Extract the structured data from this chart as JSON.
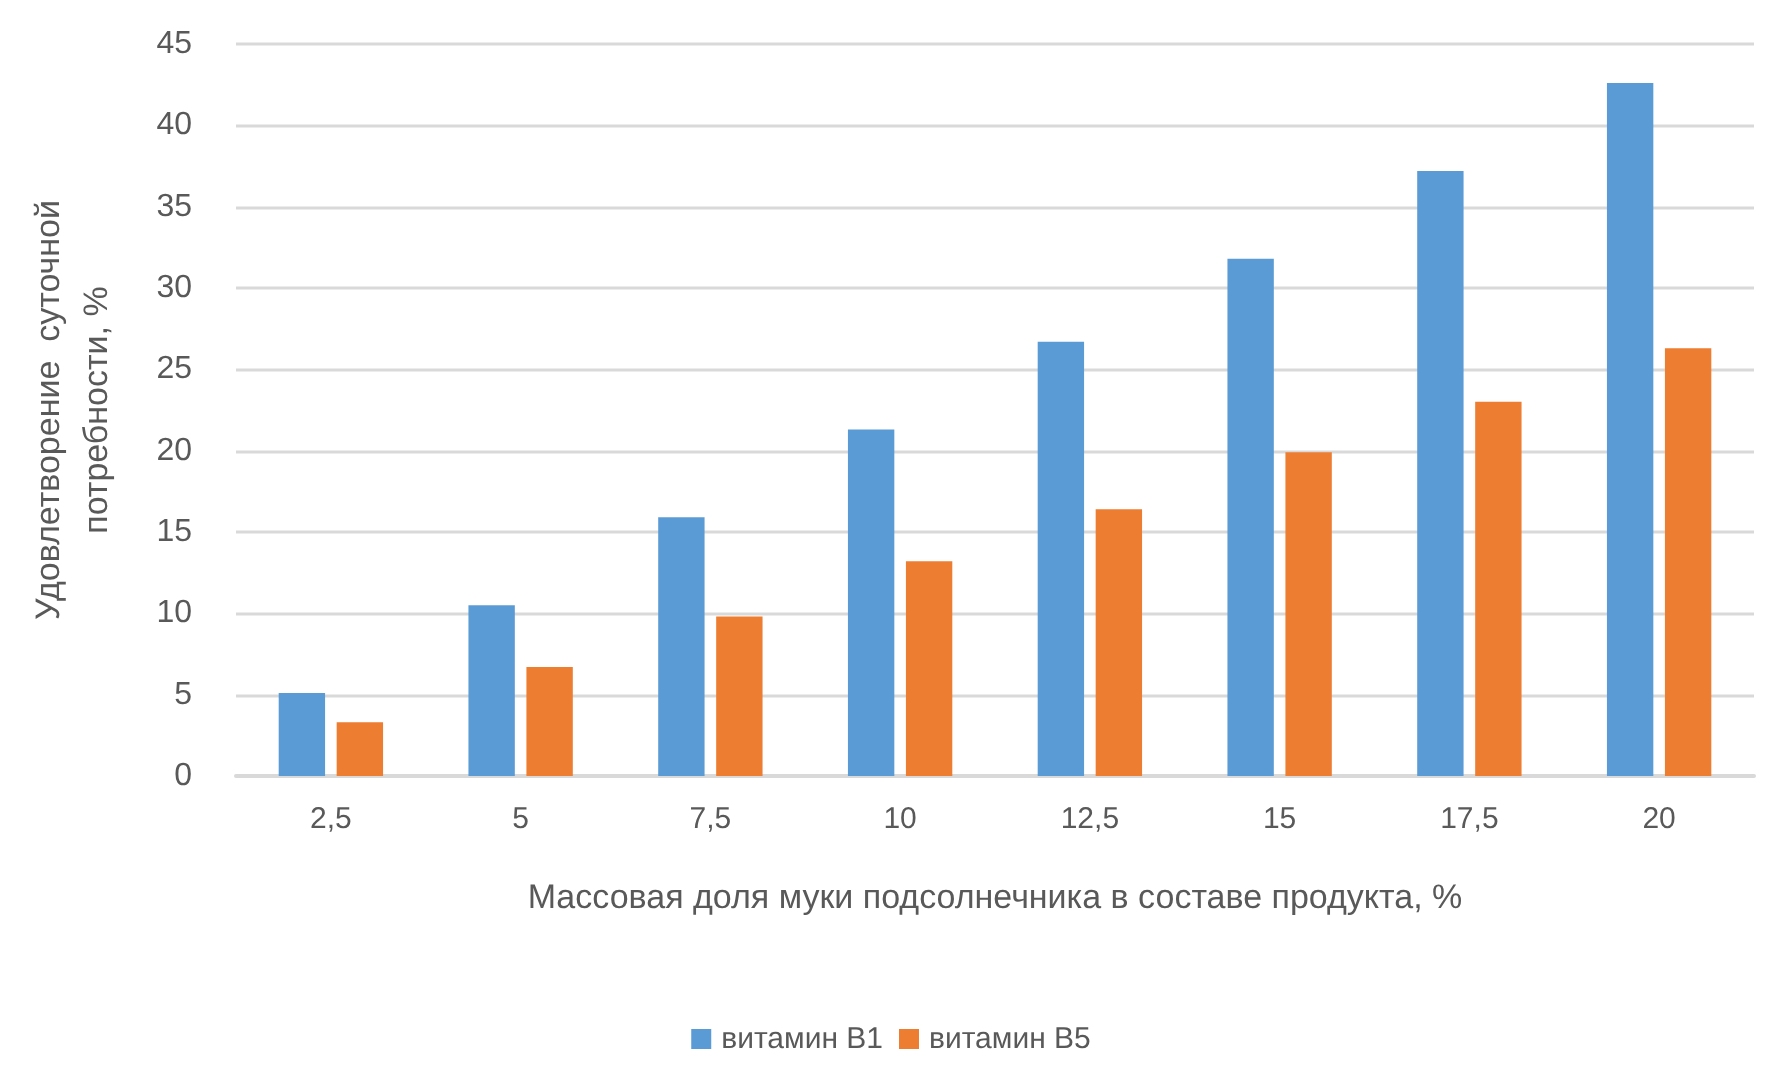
{
  "chart_data": {
    "type": "bar",
    "xlabel": "Массовая доля муки подсолнечника в составе продукта, %",
    "ylabel": "Удовлетворение  суточной\nпотребности, %",
    "categories": [
      "2,5",
      "5",
      "7,5",
      "10",
      "12,5",
      "15",
      "17,5",
      "20"
    ],
    "series": [
      {
        "name": "витамин B1",
        "color": "#5b9bd5",
        "values": [
          5.1,
          10.5,
          15.9,
          21.3,
          26.7,
          31.8,
          37.2,
          42.6
        ]
      },
      {
        "name": "витамин B5",
        "color": "#ed7d31",
        "values": [
          3.3,
          6.7,
          9.8,
          13.2,
          16.4,
          19.9,
          23.0,
          26.3
        ]
      }
    ],
    "ylim": [
      0,
      45
    ],
    "yticks": [
      0,
      5,
      10,
      15,
      20,
      25,
      30,
      35,
      40,
      45
    ],
    "grid": "y",
    "legend": "bottom"
  }
}
